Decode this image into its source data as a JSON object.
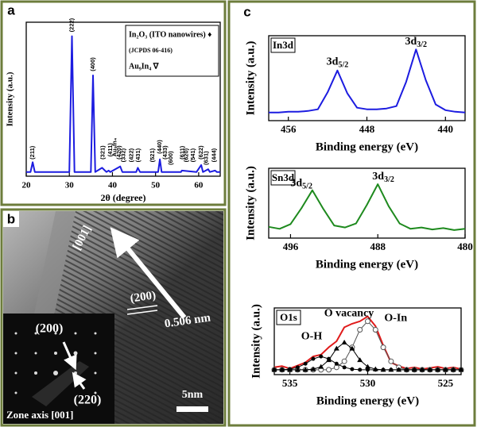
{
  "panel_labels": [
    "a",
    "b",
    "c"
  ],
  "tem_image": {
    "direction": "[001]",
    "plane": "(200)",
    "spacing": "0.506 nm",
    "scale_bar": "5nm",
    "inset": {
      "spot1": "(200)",
      "spot2": "(220)",
      "zone_axis": "Zone axis [001]"
    }
  },
  "chart_data": [
    {
      "type": "line",
      "xlabel": "2θ (degree)",
      "ylabel": "Intensity (a.u.)",
      "x": [
        20,
        21,
        21.5,
        22,
        30,
        30.6,
        31.2,
        35,
        35.5,
        36,
        37.6,
        38.6,
        39.1,
        39.5,
        41.8,
        42.3,
        45.5,
        45.9,
        46.4,
        50.6,
        51,
        51.4,
        55.9,
        56.1,
        59.5,
        60.6,
        61,
        62.2,
        62.6,
        63.8,
        64.2,
        65
      ],
      "series": [
        {
          "color": "#1c1ce0",
          "marker": "none",
          "values": [
            3,
            3,
            10,
            3,
            3,
            100,
            3,
            3,
            72,
            3,
            6,
            3,
            4,
            3,
            7,
            3,
            3,
            6,
            3,
            3,
            12,
            3,
            3,
            4,
            3,
            8,
            3,
            5,
            3,
            4,
            3,
            3
          ]
        }
      ],
      "xlim": [
        20,
        65
      ],
      "xticks": [
        20,
        30,
        40,
        50,
        60
      ],
      "ylim": [
        0,
        110
      ],
      "legend_lines": [
        "In₂O₃ (ITO nanowires) ♦",
        "(JCPDS 06-416)",
        "Au₉In₄ ∇"
      ],
      "vertical_annotations": true,
      "annotations": [
        {
          "text": "(211)",
          "x": 21.5,
          "y": 12
        },
        {
          "text": "(222)",
          "x": 30.6,
          "y": 103
        },
        {
          "text": "(400)",
          "x": 35.5,
          "y": 75
        },
        {
          "text": "(321)",
          "x": 37.8,
          "y": 12
        },
        {
          "text": "(411)",
          "x": 39.6,
          "y": 14
        },
        {
          "text": "Au₉In₄",
          "x": 40.6,
          "y": 14
        },
        {
          "text": "(420)",
          "x": 41.6,
          "y": 12
        },
        {
          "text": "(332)",
          "x": 42.6,
          "y": 10
        },
        {
          "text": "(422)",
          "x": 44.4,
          "y": 10
        },
        {
          "text": "(431)",
          "x": 46,
          "y": 10
        },
        {
          "text": "(521)",
          "x": 49.3,
          "y": 10
        },
        {
          "text": "(440)",
          "x": 51,
          "y": 16
        },
        {
          "text": "(433)",
          "x": 52.3,
          "y": 12
        },
        {
          "text": "(600)",
          "x": 53.6,
          "y": 8
        },
        {
          "text": "(611)",
          "x": 56.2,
          "y": 12
        },
        {
          "text": "(620)",
          "x": 57.2,
          "y": 10
        },
        {
          "text": "(541)",
          "x": 58.7,
          "y": 10
        },
        {
          "text": "(622)",
          "x": 60.6,
          "y": 12
        },
        {
          "text": "(631)",
          "x": 61.8,
          "y": 8
        },
        {
          "text": "(444)",
          "x": 63.6,
          "y": 10
        }
      ]
    },
    {
      "type": "line",
      "title": "In3d",
      "xlabel": "Binding energy (eV)",
      "ylabel": "Intensity (a.u.)",
      "x": [
        458,
        457,
        456,
        455,
        454,
        453,
        452,
        451,
        450,
        449,
        448,
        447,
        446,
        445,
        444,
        443,
        442,
        441,
        440,
        439,
        438
      ],
      "series": [
        {
          "color": "#1c1ce0",
          "marker": "none",
          "values": [
            10,
            10,
            11,
            11,
            12,
            14,
            35,
            62,
            34,
            16,
            14,
            14,
            15,
            18,
            48,
            88,
            50,
            20,
            13,
            11,
            10
          ]
        }
      ],
      "xlim": [
        458,
        438
      ],
      "xticks": [
        456,
        448,
        440
      ],
      "ylim": [
        0,
        105
      ],
      "annotations": [
        {
          "text": "3d",
          "sub": "5/2",
          "x": 451,
          "y": 72
        },
        {
          "text": "3d",
          "sub": "3/2",
          "x": 443,
          "y": 97
        }
      ]
    },
    {
      "type": "line",
      "title": "Sn3d",
      "xlabel": "Binding energy (eV)",
      "ylabel": "Intensity (a.u.)",
      "x": [
        498,
        497,
        496,
        495,
        494,
        493,
        492,
        491,
        490,
        489,
        488,
        487,
        486,
        485,
        484,
        483,
        482,
        481,
        480
      ],
      "series": [
        {
          "color": "#1e8a1e",
          "marker": "none",
          "values": [
            17,
            14,
            21,
            45,
            72,
            44,
            19,
            16,
            22,
            50,
            81,
            48,
            22,
            14,
            16,
            13,
            15,
            12,
            14
          ]
        }
      ],
      "xlim": [
        498,
        480
      ],
      "xticks": [
        496,
        488,
        480
      ],
      "ylim": [
        0,
        105
      ],
      "annotations": [
        {
          "text": "3d",
          "sub": "5/2",
          "x": 495,
          "y": 82
        },
        {
          "text": "3d",
          "sub": "3/2",
          "x": 487.5,
          "y": 92
        }
      ]
    },
    {
      "type": "line",
      "title": "O1s",
      "xlabel": "Binding energy (eV)",
      "ylabel": "Intensity (a.u.)",
      "x": [
        536,
        535.5,
        535,
        534.5,
        534,
        533.5,
        533,
        532.5,
        532,
        531.5,
        531,
        530.5,
        530,
        529.5,
        529,
        528.5,
        528,
        527.5,
        527,
        526.5,
        526,
        525.5,
        525,
        524.5,
        524
      ],
      "series": [
        {
          "color": "#e01b1b",
          "marker": "none",
          "values": [
            12,
            14,
            10,
            15,
            20,
            30,
            33,
            45,
            55,
            78,
            84,
            88,
            96,
            80,
            48,
            20,
            14,
            10,
            12,
            9,
            11,
            13,
            10,
            12,
            9
          ]
        },
        {
          "color": "#555555",
          "marker": "circle-open",
          "values": [
            8,
            8,
            8,
            8,
            8,
            8,
            8,
            8,
            12,
            22,
            45,
            74,
            88,
            74,
            45,
            22,
            12,
            8,
            8,
            8,
            8,
            8,
            8,
            8,
            8
          ]
        },
        {
          "color": "#000000",
          "marker": "triangle",
          "values": [
            8,
            8,
            8,
            8,
            8,
            9,
            13,
            24,
            43,
            53,
            43,
            24,
            13,
            9,
            8,
            8,
            8,
            8,
            8,
            8,
            8,
            8,
            8,
            8,
            8
          ]
        },
        {
          "color": "#000000",
          "marker": "dot",
          "values": [
            8,
            8,
            9,
            12,
            18,
            26,
            30,
            26,
            18,
            12,
            9,
            8,
            8,
            8,
            8,
            8,
            8,
            8,
            8,
            8,
            8,
            8,
            8,
            8,
            8
          ]
        }
      ],
      "xlim": [
        536,
        524
      ],
      "xticks": [
        535,
        530,
        525
      ],
      "ylim": [
        0,
        110
      ],
      "annotations": [
        {
          "text": "O-H",
          "x": 533.6,
          "y": 62
        },
        {
          "text": "O vacancy",
          "x": 531.2,
          "y": 100
        },
        {
          "text": "O-In",
          "x": 528.2,
          "y": 92
        }
      ]
    }
  ]
}
